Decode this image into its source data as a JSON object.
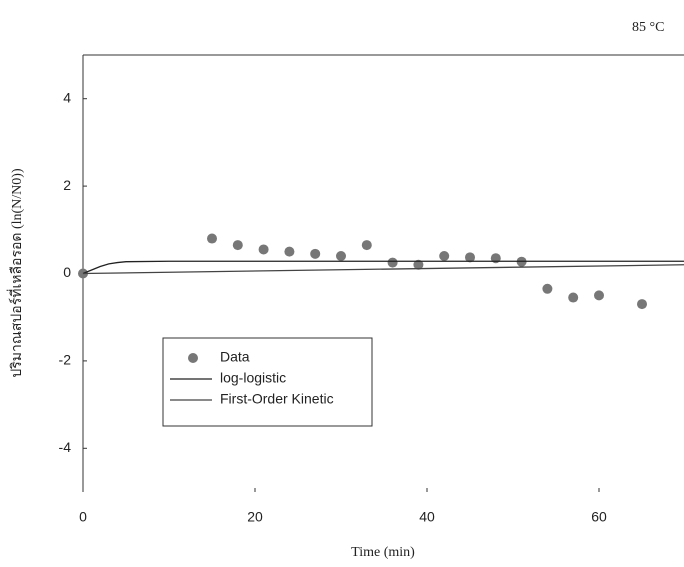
{
  "chart_data": {
    "type": "line",
    "title": "85 °C",
    "x_label": "Time (min)",
    "y_label": "ปริมาณสปอร์ที่เหลือรอด (ln(N/N0))",
    "xlim": [
      0,
      70
    ],
    "ylim": [
      -5,
      5
    ],
    "xticks": [
      0,
      20,
      40,
      60
    ],
    "yticks": [
      -4,
      -2,
      0,
      2,
      4
    ],
    "legend": "lower left",
    "series": [
      {
        "name": "Data",
        "mode": "markers",
        "color": "#777777",
        "x": [
          0,
          15,
          18,
          21,
          24,
          27,
          30,
          33,
          36,
          39,
          42,
          45,
          48,
          51,
          54,
          57,
          60,
          65
        ],
        "values": [
          0,
          0.8,
          0.65,
          0.55,
          0.5,
          0.45,
          0.4,
          0.65,
          0.25,
          0.2,
          0.4,
          0.37,
          0.35,
          0.27,
          -0.35,
          -0.55,
          -0.5,
          -0.7
        ]
      },
      {
        "name": "log-logistic",
        "mode": "line",
        "color": "#222222",
        "x": [
          0,
          1,
          2,
          3,
          4,
          5,
          10,
          70
        ],
        "values": [
          0,
          0.08,
          0.16,
          0.22,
          0.25,
          0.27,
          0.28,
          0.28
        ]
      },
      {
        "name": "First-Order Kinetic",
        "mode": "line",
        "color": "#444444",
        "x": [
          0,
          70
        ],
        "values": [
          0,
          0.2
        ]
      }
    ]
  }
}
